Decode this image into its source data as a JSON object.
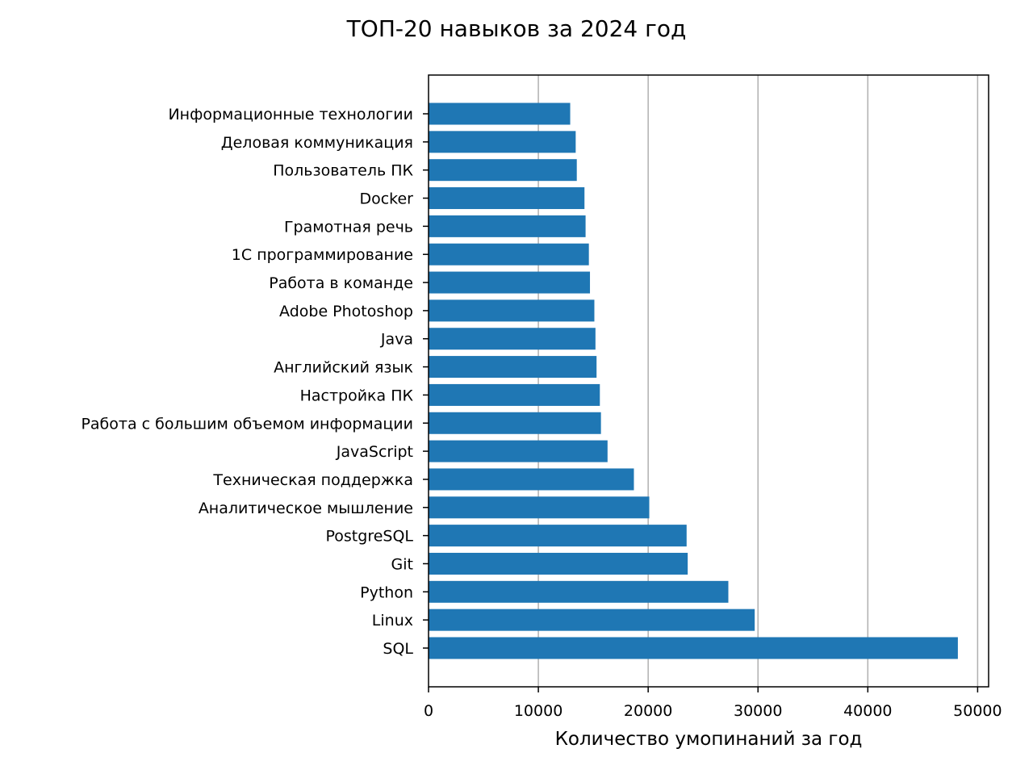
{
  "chart_data": {
    "type": "bar",
    "orientation": "horizontal",
    "title": "ТОП-20 навыков за 2024 год",
    "xlabel": "Количество умопинаний за год",
    "ylabel": "",
    "xlim": [
      0,
      51000
    ],
    "xticks": [
      0,
      10000,
      20000,
      30000,
      40000,
      50000
    ],
    "grid": "x",
    "bar_color": "#1f77b4",
    "categories": [
      "Информационные технологии",
      "Деловая коммуникация",
      "Пользователь ПК",
      "Docker",
      "Грамотная речь",
      "1С программирование",
      "Работа в команде",
      "Adobe Photoshop",
      "Java",
      "Английский язык",
      "Настройка ПК",
      "Работа с большим объемом информации",
      "JavaScript",
      "Техническая поддержка",
      "Аналитическое мышление",
      "PostgreSQL",
      "Git",
      "Python",
      "Linux",
      "SQL"
    ],
    "values": [
      12900,
      13400,
      13500,
      14200,
      14300,
      14600,
      14700,
      15100,
      15200,
      15300,
      15600,
      15700,
      16300,
      18700,
      20100,
      23500,
      23600,
      27300,
      29700,
      48200
    ]
  }
}
